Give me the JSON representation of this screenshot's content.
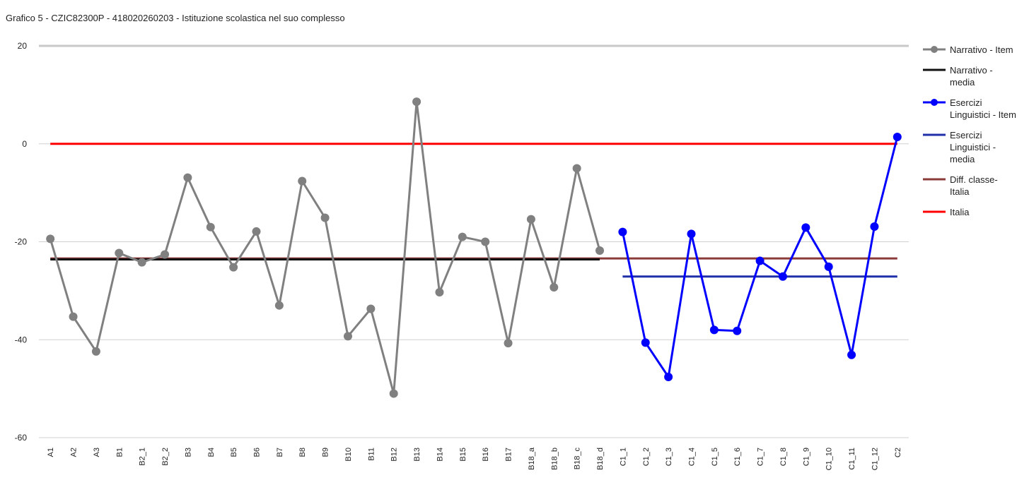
{
  "chart_data": {
    "type": "line",
    "title": "Grafico 5 - CZIC82300P - 418020260203 - Istituzione scolastica nel suo complesso",
    "categories": [
      "A1",
      "A2",
      "A3",
      "B1",
      "B2_1",
      "B2_2",
      "B3",
      "B4",
      "B5",
      "B6",
      "B7",
      "B8",
      "B9",
      "B10",
      "B11",
      "B12",
      "B13",
      "B14",
      "B15",
      "B16",
      "B17",
      "B18_a",
      "B18_b",
      "B18_c",
      "B18_d",
      "C1_1",
      "C1_2",
      "C1_3",
      "C1_4",
      "C1_5",
      "C1_6",
      "C1_7",
      "C1_8",
      "C1_9",
      "C1_10",
      "C1_11",
      "C1_12",
      "C2"
    ],
    "ylim": [
      -60,
      20
    ],
    "yticks": [
      -60,
      -40,
      -20,
      0,
      20
    ],
    "grid": true,
    "legend": "right",
    "series": [
      {
        "name": "Narrativo - Item",
        "color": "#808080",
        "marker": true,
        "values": [
          -19.4,
          -35.3,
          -42.4,
          -22.3,
          -24.2,
          -22.6,
          -6.9,
          -17.0,
          -25.2,
          -17.9,
          -33.0,
          -7.6,
          -15.1,
          -39.3,
          -33.7,
          -51.0,
          8.6,
          -30.3,
          -19.0,
          -20.0,
          -40.7,
          -15.4,
          -29.3,
          -5.0,
          -21.8,
          null,
          null,
          null,
          null,
          null,
          null,
          null,
          null,
          null,
          null,
          null,
          null,
          null
        ]
      },
      {
        "name": "Narrativo - media",
        "color": "#111111",
        "marker": false,
        "values": [
          -23.6,
          -23.6,
          -23.6,
          -23.6,
          -23.6,
          -23.6,
          -23.6,
          -23.6,
          -23.6,
          -23.6,
          -23.6,
          -23.6,
          -23.6,
          -23.6,
          -23.6,
          -23.6,
          -23.6,
          -23.6,
          -23.6,
          -23.6,
          -23.6,
          -23.6,
          -23.6,
          -23.6,
          -23.6,
          null,
          null,
          null,
          null,
          null,
          null,
          null,
          null,
          null,
          null,
          null,
          null,
          null
        ]
      },
      {
        "name": "Esercizi Linguistici - Item",
        "color": "#0000ff",
        "marker": true,
        "values": [
          null,
          null,
          null,
          null,
          null,
          null,
          null,
          null,
          null,
          null,
          null,
          null,
          null,
          null,
          null,
          null,
          null,
          null,
          null,
          null,
          null,
          null,
          null,
          null,
          null,
          -18.0,
          -40.6,
          -47.6,
          -18.4,
          -38.0,
          -38.2,
          -23.9,
          -27.1,
          -17.1,
          -25.1,
          -43.1,
          -16.9,
          1.4
        ]
      },
      {
        "name": "Esercizi Linguistici - media",
        "color": "#1f2fa8",
        "marker": false,
        "values": [
          null,
          null,
          null,
          null,
          null,
          null,
          null,
          null,
          null,
          null,
          null,
          null,
          null,
          null,
          null,
          null,
          null,
          null,
          null,
          null,
          null,
          null,
          null,
          null,
          null,
          -27.1,
          -27.1,
          -27.1,
          -27.1,
          -27.1,
          -27.1,
          -27.1,
          -27.1,
          -27.1,
          -27.1,
          -27.1,
          -27.1,
          -27.1
        ]
      },
      {
        "name": "Diff. classe-Italia",
        "color": "#8b3a3a",
        "marker": false,
        "values": [
          -23.4,
          -23.4,
          -23.4,
          -23.4,
          -23.4,
          -23.4,
          -23.4,
          -23.4,
          -23.4,
          -23.4,
          -23.4,
          -23.4,
          -23.4,
          -23.4,
          -23.4,
          -23.4,
          -23.4,
          -23.4,
          -23.4,
          -23.4,
          -23.4,
          -23.4,
          -23.4,
          -23.4,
          -23.4,
          -23.4,
          -23.4,
          -23.4,
          -23.4,
          -23.4,
          -23.4,
          -23.4,
          -23.4,
          -23.4,
          -23.4,
          -23.4,
          -23.4,
          -23.4
        ]
      },
      {
        "name": "Italia",
        "color": "#ff0000",
        "marker": false,
        "values": [
          0,
          0,
          0,
          0,
          0,
          0,
          0,
          0,
          0,
          0,
          0,
          0,
          0,
          0,
          0,
          0,
          0,
          0,
          0,
          0,
          0,
          0,
          0,
          0,
          0,
          0,
          0,
          0,
          0,
          0,
          0,
          0,
          0,
          0,
          0,
          0,
          0,
          0
        ]
      }
    ]
  }
}
